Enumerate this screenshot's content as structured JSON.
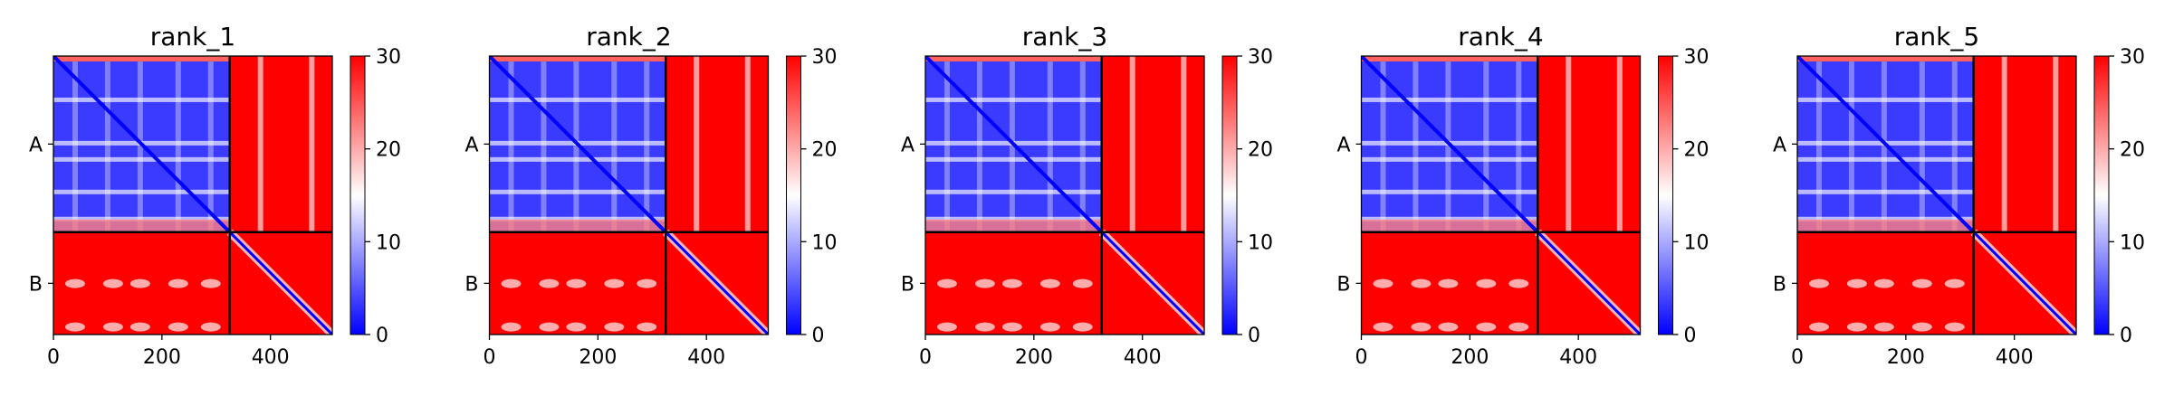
{
  "chart_data": [
    {
      "type": "heatmap",
      "title": "rank_1",
      "ytick_labels": [
        "A",
        "B"
      ],
      "xticks": [
        0,
        200,
        400
      ],
      "xlim": [
        0,
        514
      ],
      "chain_boundary": 325,
      "colorbar": {
        "ticks": [
          0,
          10,
          20,
          30
        ],
        "range": [
          0,
          30
        ]
      },
      "bands": {
        "A_columns_x": [
          40,
          100,
          160,
          230,
          290
        ],
        "A_rows_y": [
          80,
          160,
          190,
          250,
          300
        ],
        "B_spots_x": [
          40,
          110,
          160,
          230,
          290
        ],
        "B_spot_rows_y": [
          420,
          500
        ]
      }
    },
    {
      "type": "heatmap",
      "title": "rank_2",
      "ytick_labels": [
        "A",
        "B"
      ],
      "xticks": [
        0,
        200,
        400
      ],
      "xlim": [
        0,
        514
      ],
      "chain_boundary": 325,
      "colorbar": {
        "ticks": [
          0,
          10,
          20,
          30
        ],
        "range": [
          0,
          30
        ]
      },
      "bands": {
        "A_columns_x": [
          40,
          100,
          160,
          230,
          290
        ],
        "A_rows_y": [
          80,
          160,
          190,
          250,
          300
        ],
        "B_spots_x": [
          40,
          110,
          160,
          230,
          290
        ],
        "B_spot_rows_y": [
          420,
          500
        ]
      }
    },
    {
      "type": "heatmap",
      "title": "rank_3",
      "ytick_labels": [
        "A",
        "B"
      ],
      "xticks": [
        0,
        200,
        400
      ],
      "xlim": [
        0,
        514
      ],
      "chain_boundary": 325,
      "colorbar": {
        "ticks": [
          0,
          10,
          20,
          30
        ],
        "range": [
          0,
          30
        ]
      },
      "bands": {
        "A_columns_x": [
          40,
          100,
          160,
          230,
          290
        ],
        "A_rows_y": [
          80,
          160,
          190,
          250,
          300
        ],
        "B_spots_x": [
          40,
          110,
          160,
          230,
          290
        ],
        "B_spot_rows_y": [
          420,
          500
        ]
      }
    },
    {
      "type": "heatmap",
      "title": "rank_4",
      "ytick_labels": [
        "A",
        "B"
      ],
      "xticks": [
        0,
        200,
        400
      ],
      "xlim": [
        0,
        514
      ],
      "chain_boundary": 325,
      "colorbar": {
        "ticks": [
          0,
          10,
          20,
          30
        ],
        "range": [
          0,
          30
        ]
      },
      "bands": {
        "A_columns_x": [
          40,
          100,
          160,
          230,
          290
        ],
        "A_rows_y": [
          80,
          160,
          190,
          250,
          300
        ],
        "B_spots_x": [
          40,
          110,
          160,
          230,
          290
        ],
        "B_spot_rows_y": [
          420,
          500
        ]
      }
    },
    {
      "type": "heatmap",
      "title": "rank_5",
      "ytick_labels": [
        "A",
        "B"
      ],
      "xticks": [
        0,
        200,
        400
      ],
      "xlim": [
        0,
        514
      ],
      "chain_boundary": 325,
      "colorbar": {
        "ticks": [
          0,
          10,
          20,
          30
        ],
        "range": [
          0,
          30
        ]
      },
      "bands": {
        "A_columns_x": [
          40,
          100,
          160,
          230,
          290
        ],
        "A_rows_y": [
          80,
          160,
          190,
          250,
          300
        ],
        "B_spots_x": [
          40,
          110,
          160,
          230,
          290
        ],
        "B_spot_rows_y": [
          420,
          500
        ]
      }
    }
  ],
  "colors": {
    "low": "#0000ff",
    "mid": "#ffffff",
    "high": "#ff0000",
    "frame": "#000000"
  }
}
